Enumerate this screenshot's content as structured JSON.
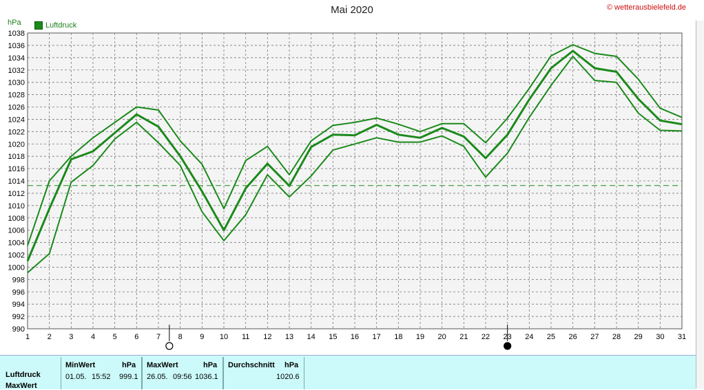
{
  "title": "Mai 2020",
  "copyright": "© wetterausbielefeld.de",
  "unit": "hPa",
  "legend": {
    "label": "Luftdruck",
    "color": "#1a8a1a"
  },
  "chart_data": {
    "type": "line",
    "title": "Mai 2020",
    "ylabel": "hPa",
    "ylim": [
      990,
      1038
    ],
    "yticks": [
      990,
      992,
      994,
      996,
      998,
      1000,
      1002,
      1004,
      1006,
      1008,
      1010,
      1012,
      1014,
      1016,
      1018,
      1020,
      1022,
      1024,
      1026,
      1028,
      1030,
      1032,
      1034,
      1036,
      1038
    ],
    "x": [
      1,
      2,
      3,
      4,
      5,
      6,
      7,
      8,
      9,
      10,
      11,
      12,
      13,
      14,
      15,
      16,
      17,
      18,
      19,
      20,
      21,
      22,
      23,
      24,
      25,
      26,
      27,
      28,
      29,
      30,
      31
    ],
    "reference_line": 1013.25,
    "moon_markers": [
      {
        "day": 7.5,
        "phase": "full"
      },
      {
        "day": 23,
        "phase": "new"
      }
    ],
    "series": [
      {
        "name": "Luftdruck",
        "role": "max",
        "color": "#1a8a1a",
        "values": [
          1003.5,
          1014,
          1018,
          1021,
          1023.5,
          1026,
          1025.5,
          1020.5,
          1016.7,
          1009.5,
          1017.3,
          1019.6,
          1015,
          1020.5,
          1023,
          1023.5,
          1024.2,
          1023.2,
          1022,
          1023.3,
          1023.3,
          1020.2,
          1024.2,
          1029,
          1034.3,
          1036.1,
          1034.7,
          1034.2,
          1030.5,
          1025.8,
          1024.3
        ]
      },
      {
        "name": "Luftdruck",
        "role": "avg",
        "color": "#1a8a1a",
        "values": [
          1001,
          1009.5,
          1017.5,
          1018.8,
          1021.8,
          1024.8,
          1022.8,
          1018,
          1012.3,
          1006,
          1012.8,
          1016.8,
          1013.2,
          1019.5,
          1021.5,
          1021.4,
          1023.1,
          1021.5,
          1021,
          1022.6,
          1021.2,
          1017.7,
          1021.5,
          1027.2,
          1032.3,
          1035.1,
          1032.3,
          1031.7,
          1027.3,
          1023.8,
          1023.2
        ]
      },
      {
        "name": "Luftdruck",
        "role": "min",
        "color": "#1a8a1a",
        "values": [
          999.1,
          1002.2,
          1013.8,
          1016.5,
          1020.8,
          1023.5,
          1020.2,
          1016.5,
          1009,
          1004.3,
          1008.5,
          1015,
          1011.4,
          1014.8,
          1019,
          1020,
          1021,
          1020.3,
          1020.3,
          1021.3,
          1019.6,
          1014.6,
          1018.5,
          1024.3,
          1029.5,
          1034.2,
          1030.3,
          1030,
          1025,
          1022.2,
          1022.1
        ]
      }
    ]
  },
  "stats": {
    "row1_label": "Luftdruck",
    "row2_label": "MaxWert",
    "min_header": "MinWert",
    "min_unit": "hPa",
    "min_date": "01.05.",
    "min_time": "15:52",
    "min_value": "999.1",
    "max_header": "MaxWert",
    "max_unit": "hPa",
    "max_date": "26.05.",
    "max_time": "09:56",
    "max_value": "1036.1",
    "avg_header": "Durchschnitt",
    "avg_unit": "hPa",
    "avg_value": "1020.6"
  }
}
